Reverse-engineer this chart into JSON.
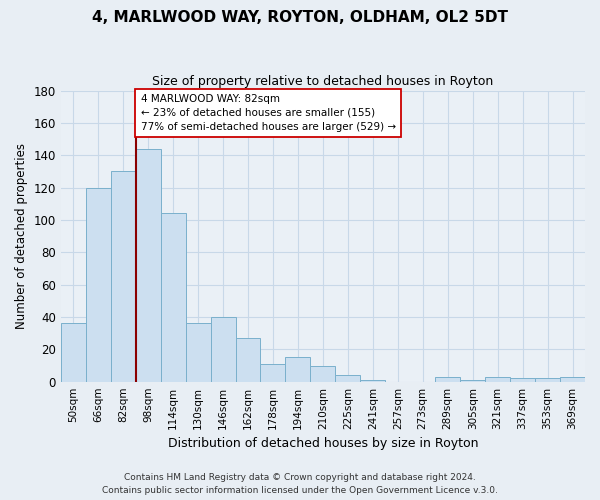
{
  "title": "4, MARLWOOD WAY, ROYTON, OLDHAM, OL2 5DT",
  "subtitle": "Size of property relative to detached houses in Royton",
  "xlabel": "Distribution of detached houses by size in Royton",
  "ylabel": "Number of detached properties",
  "bar_color": "#ccdff0",
  "bar_edge_color": "#7ab0cc",
  "marker_line_color": "#8b0000",
  "categories": [
    "50sqm",
    "66sqm",
    "82sqm",
    "98sqm",
    "114sqm",
    "130sqm",
    "146sqm",
    "162sqm",
    "178sqm",
    "194sqm",
    "210sqm",
    "225sqm",
    "241sqm",
    "257sqm",
    "273sqm",
    "289sqm",
    "305sqm",
    "321sqm",
    "337sqm",
    "353sqm",
    "369sqm"
  ],
  "values": [
    36,
    120,
    130,
    144,
    104,
    36,
    40,
    27,
    11,
    15,
    10,
    4,
    1,
    0,
    0,
    3,
    1,
    3,
    2,
    2,
    3
  ],
  "ylim": [
    0,
    180
  ],
  "yticks": [
    0,
    20,
    40,
    60,
    80,
    100,
    120,
    140,
    160,
    180
  ],
  "annotation_title": "4 MARLWOOD WAY: 82sqm",
  "annotation_line1": "← 23% of detached houses are smaller (155)",
  "annotation_line2": "77% of semi-detached houses are larger (529) →",
  "footnote1": "Contains HM Land Registry data © Crown copyright and database right 2024.",
  "footnote2": "Contains public sector information licensed under the Open Government Licence v.3.0.",
  "background_color": "#e8eef4",
  "plot_background_color": "#eaf0f6",
  "grid_color": "#c8d8e8"
}
